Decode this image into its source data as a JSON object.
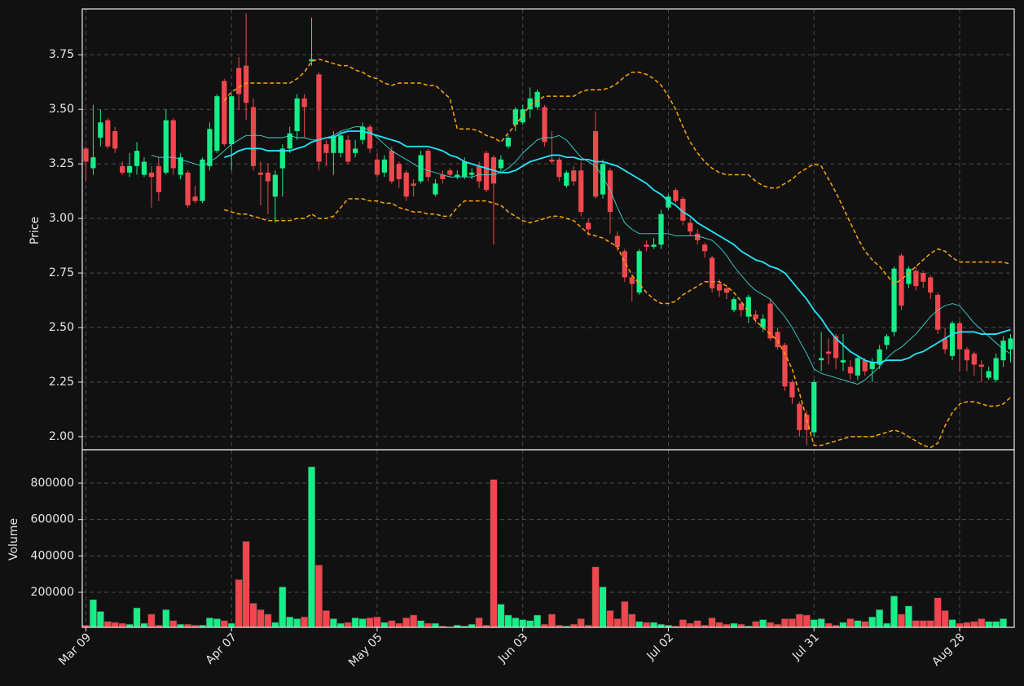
{
  "chart_data": {
    "type": "candlestick",
    "ylabel": "Price",
    "volume_ylabel": "Volume",
    "up_color": "#16ee88",
    "down_color": "#f0474e",
    "grid": true,
    "categories": [
      "Mar 09",
      null,
      null,
      null,
      null,
      null,
      null,
      null,
      null,
      null,
      null,
      null,
      null,
      null,
      null,
      null,
      null,
      null,
      null,
      null,
      "Apr 07",
      null,
      null,
      null,
      null,
      null,
      null,
      null,
      null,
      null,
      null,
      null,
      null,
      null,
      null,
      null,
      null,
      null,
      null,
      null,
      "May 05",
      null,
      null,
      null,
      null,
      null,
      null,
      null,
      null,
      null,
      null,
      null,
      null,
      null,
      null,
      null,
      null,
      null,
      null,
      null,
      "Jun 03",
      null,
      null,
      null,
      null,
      null,
      null,
      null,
      null,
      null,
      null,
      null,
      null,
      null,
      null,
      null,
      null,
      null,
      null,
      null,
      "Jul 02",
      null,
      null,
      null,
      null,
      null,
      null,
      null,
      null,
      null,
      null,
      null,
      null,
      null,
      null,
      null,
      null,
      null,
      null,
      null,
      "Jul 31",
      null,
      null,
      null,
      null,
      null,
      null,
      null,
      null,
      null,
      null,
      null,
      null,
      null,
      null,
      null,
      null,
      null,
      null,
      null,
      "Aug 28",
      null,
      null,
      null,
      null,
      null,
      null,
      null
    ],
    "open": [
      3.32,
      3.23,
      3.37,
      3.45,
      3.4,
      3.24,
      3.21,
      3.24,
      3.2,
      3.21,
      3.24,
      3.21,
      3.45,
      3.2,
      3.21,
      3.1,
      3.08,
      3.24,
      3.31,
      3.63,
      3.34,
      3.69,
      3.7,
      3.51,
      3.21,
      3.21,
      3.1,
      3.23,
      3.32,
      3.4,
      3.55,
      3.72,
      3.66,
      3.34,
      3.3,
      3.3,
      3.36,
      3.3,
      3.36,
      3.42,
      3.27,
      3.21,
      3.31,
      3.25,
      3.21,
      3.16,
      3.17,
      3.31,
      3.11,
      3.2,
      3.22,
      3.19,
      3.19,
      3.2,
      3.24,
      3.3,
      3.28,
      3.23,
      3.33,
      3.43,
      3.44,
      3.5,
      3.51,
      3.51,
      3.27,
      3.27,
      3.15,
      3.22,
      3.22,
      2.98,
      3.4,
      3.11,
      3.22,
      2.92,
      2.85,
      2.73,
      2.66,
      2.88,
      2.87,
      2.88,
      3.05,
      3.13,
      3.09,
      2.98,
      2.93,
      2.88,
      2.82,
      2.7,
      2.68,
      2.58,
      2.61,
      2.55,
      2.56,
      2.5,
      2.61,
      2.48,
      2.42,
      2.25,
      2.15,
      2.1,
      2.02,
      2.35,
      2.39,
      2.46,
      2.34,
      2.32,
      2.28,
      2.35,
      2.31,
      2.33,
      2.42,
      2.48,
      2.83,
      2.7,
      2.76,
      2.75,
      2.73,
      2.65,
      2.45,
      2.37,
      2.52,
      2.4,
      2.38,
      2.33,
      2.27,
      2.26,
      2.35,
      2.4
    ],
    "high": [
      3.33,
      3.52,
      3.5,
      3.46,
      3.42,
      3.26,
      3.3,
      3.35,
      3.28,
      3.24,
      3.28,
      3.5,
      3.46,
      3.3,
      3.22,
      3.15,
      3.28,
      3.44,
      3.57,
      3.64,
      3.57,
      3.74,
      3.94,
      3.55,
      3.26,
      3.25,
      3.22,
      3.34,
      3.42,
      3.57,
      3.57,
      3.92,
      3.67,
      3.36,
      3.4,
      3.4,
      3.38,
      3.36,
      3.44,
      3.43,
      3.3,
      3.29,
      3.33,
      3.26,
      3.22,
      3.18,
      3.31,
      3.32,
      3.18,
      3.22,
      3.23,
      3.22,
      3.28,
      3.23,
      3.26,
      3.31,
      3.29,
      3.29,
      3.38,
      3.51,
      3.52,
      3.6,
      3.59,
      3.52,
      3.4,
      3.28,
      3.22,
      3.24,
      3.26,
      3.0,
      3.49,
      3.27,
      3.23,
      2.94,
      2.86,
      2.74,
      2.86,
      2.9,
      2.91,
      3.04,
      3.11,
      3.14,
      3.1,
      3.0,
      2.95,
      2.89,
      2.83,
      2.72,
      2.69,
      2.64,
      2.62,
      2.65,
      2.58,
      2.56,
      2.63,
      2.5,
      2.43,
      2.26,
      2.16,
      2.12,
      2.26,
      2.48,
      2.45,
      2.47,
      2.47,
      2.35,
      2.37,
      2.36,
      2.36,
      2.42,
      2.47,
      2.78,
      2.84,
      2.78,
      2.78,
      2.76,
      2.74,
      2.66,
      2.5,
      2.53,
      2.53,
      2.41,
      2.39,
      2.35,
      2.32,
      2.38,
      2.46,
      2.47
    ],
    "low": [
      3.17,
      3.2,
      3.33,
      3.32,
      3.3,
      3.2,
      3.19,
      3.2,
      3.19,
      3.05,
      3.08,
      3.2,
      3.2,
      3.18,
      3.05,
      3.07,
      3.07,
      3.22,
      3.3,
      3.33,
      3.22,
      3.5,
      3.45,
      3.22,
      3.06,
      3.02,
      2.98,
      3.1,
      3.3,
      3.36,
      3.37,
      3.7,
      3.22,
      3.24,
      3.2,
      3.28,
      3.25,
      3.28,
      3.34,
      3.3,
      3.19,
      3.19,
      3.16,
      3.14,
      3.08,
      3.1,
      3.16,
      3.17,
      3.1,
      3.16,
      3.19,
      3.18,
      3.18,
      3.18,
      3.14,
      3.12,
      2.88,
      3.21,
      3.32,
      3.4,
      3.43,
      3.46,
      3.5,
      3.33,
      3.25,
      3.17,
      3.14,
      3.15,
      3.01,
      2.92,
      3.09,
      3.09,
      2.93,
      2.85,
      2.71,
      2.62,
      2.65,
      2.85,
      2.86,
      2.86,
      3.04,
      3.07,
      2.97,
      2.92,
      2.88,
      2.82,
      2.66,
      2.64,
      2.63,
      2.57,
      2.55,
      2.52,
      2.52,
      2.48,
      2.44,
      2.4,
      2.21,
      2.15,
      2.0,
      1.96,
      2.0,
      2.3,
      2.33,
      2.31,
      2.3,
      2.26,
      2.26,
      2.28,
      2.25,
      2.31,
      2.4,
      2.46,
      2.58,
      2.68,
      2.67,
      2.68,
      2.63,
      2.47,
      2.38,
      2.35,
      2.3,
      2.3,
      2.28,
      2.25,
      2.26,
      2.25,
      2.32,
      2.34
    ],
    "close": [
      3.26,
      3.28,
      3.44,
      3.33,
      3.32,
      3.21,
      3.24,
      3.31,
      3.26,
      3.19,
      3.12,
      3.45,
      3.23,
      3.28,
      3.06,
      3.08,
      3.27,
      3.41,
      3.56,
      3.34,
      3.56,
      3.57,
      3.53,
      3.24,
      3.2,
      3.17,
      3.2,
      3.32,
      3.39,
      3.55,
      3.51,
      3.73,
      3.26,
      3.3,
      3.38,
      3.38,
      3.26,
      3.32,
      3.42,
      3.32,
      3.2,
      3.27,
      3.17,
      3.18,
      3.1,
      3.15,
      3.29,
      3.19,
      3.16,
      3.18,
      3.2,
      3.2,
      3.26,
      3.21,
      3.17,
      3.13,
      3.16,
      3.27,
      3.37,
      3.5,
      3.5,
      3.55,
      3.58,
      3.35,
      3.26,
      3.19,
      3.21,
      3.17,
      3.03,
      2.95,
      3.1,
      3.25,
      3.03,
      2.87,
      2.73,
      2.7,
      2.85,
      2.87,
      2.88,
      3.02,
      3.1,
      3.08,
      2.99,
      2.94,
      2.9,
      2.85,
      2.68,
      2.67,
      2.66,
      2.63,
      2.58,
      2.64,
      2.54,
      2.54,
      2.45,
      2.41,
      2.23,
      2.18,
      2.03,
      2.03,
      2.25,
      2.36,
      2.38,
      2.36,
      2.35,
      2.29,
      2.36,
      2.3,
      2.34,
      2.4,
      2.46,
      2.77,
      2.6,
      2.77,
      2.69,
      2.71,
      2.66,
      2.49,
      2.4,
      2.52,
      2.4,
      2.35,
      2.33,
      2.32,
      2.3,
      2.36,
      2.44,
      2.45
    ],
    "volume": [
      20000,
      160000,
      95000,
      40000,
      35000,
      30000,
      25000,
      115000,
      30000,
      80000,
      20000,
      105000,
      45000,
      25000,
      25000,
      20000,
      20000,
      60000,
      55000,
      45000,
      30000,
      270000,
      480000,
      140000,
      105000,
      80000,
      35000,
      230000,
      65000,
      55000,
      65000,
      890000,
      350000,
      100000,
      55000,
      30000,
      35000,
      60000,
      55000,
      60000,
      65000,
      35000,
      45000,
      30000,
      60000,
      75000,
      45000,
      30000,
      30000,
      15000,
      10000,
      20000,
      15000,
      25000,
      60000,
      20000,
      820000,
      135000,
      75000,
      60000,
      50000,
      45000,
      75000,
      25000,
      80000,
      20000,
      15000,
      25000,
      55000,
      20000,
      340000,
      230000,
      100000,
      55000,
      150000,
      80000,
      40000,
      35000,
      35000,
      25000,
      20000,
      15000,
      50000,
      30000,
      45000,
      20000,
      60000,
      35000,
      25000,
      30000,
      25000,
      15000,
      40000,
      50000,
      35000,
      25000,
      55000,
      55000,
      80000,
      75000,
      50000,
      55000,
      30000,
      20000,
      35000,
      55000,
      45000,
      40000,
      65000,
      105000,
      30000,
      180000,
      80000,
      125000,
      45000,
      45000,
      45000,
      170000,
      100000,
      50000,
      30000,
      35000,
      40000,
      55000,
      40000,
      40000,
      55000,
      10000
    ],
    "lines": [
      {
        "color": "#ffa500",
        "dash": true,
        "width": 1.5,
        "values": [
          null,
          null,
          null,
          null,
          null,
          null,
          null,
          null,
          null,
          null,
          null,
          null,
          null,
          null,
          null,
          null,
          null,
          null,
          null,
          3.54,
          3.58,
          3.6,
          3.62,
          3.62,
          3.62,
          3.62,
          3.62,
          3.62,
          3.62,
          3.64,
          3.67,
          3.72,
          3.73,
          3.72,
          3.71,
          3.7,
          3.7,
          3.68,
          3.67,
          3.65,
          3.64,
          3.62,
          3.61,
          3.62,
          3.62,
          3.62,
          3.62,
          3.61,
          3.61,
          3.58,
          3.55,
          3.41,
          3.41,
          3.41,
          3.4,
          3.38,
          3.37,
          3.35,
          3.39,
          3.43,
          3.47,
          3.52,
          3.54,
          3.56,
          3.56,
          3.56,
          3.56,
          3.56,
          3.58,
          3.59,
          3.59,
          3.59,
          3.6,
          3.62,
          3.65,
          3.67,
          3.67,
          3.66,
          3.64,
          3.61,
          3.56,
          3.5,
          3.42,
          3.35,
          3.3,
          3.26,
          3.23,
          3.21,
          3.2,
          3.2,
          3.2,
          3.2,
          3.17,
          3.15,
          3.14,
          3.14,
          3.16,
          3.18,
          3.21,
          3.23,
          3.25,
          3.24,
          3.18,
          3.12,
          3.05,
          2.98,
          2.91,
          2.85,
          2.81,
          2.78,
          2.74,
          2.7,
          2.72,
          2.75,
          2.78,
          2.81,
          2.84,
          2.86,
          2.85,
          2.82,
          2.8,
          2.8,
          2.8,
          2.8,
          2.8,
          2.8,
          2.8,
          2.79
        ]
      },
      {
        "color": "#ffa500",
        "dash": true,
        "width": 1.5,
        "values": [
          null,
          null,
          null,
          null,
          null,
          null,
          null,
          null,
          null,
          null,
          null,
          null,
          null,
          null,
          null,
          null,
          null,
          null,
          null,
          3.04,
          3.03,
          3.02,
          3.02,
          3.01,
          3.0,
          2.99,
          2.99,
          2.99,
          2.99,
          3.0,
          3.0,
          3.02,
          3.0,
          3.0,
          3.01,
          3.05,
          3.09,
          3.09,
          3.09,
          3.08,
          3.08,
          3.07,
          3.07,
          3.05,
          3.04,
          3.03,
          3.03,
          3.02,
          3.02,
          3.01,
          3.01,
          3.05,
          3.08,
          3.08,
          3.08,
          3.08,
          3.07,
          3.06,
          3.03,
          3.01,
          2.99,
          2.98,
          2.99,
          3.0,
          3.01,
          3.01,
          3.0,
          2.99,
          2.96,
          2.93,
          2.92,
          2.91,
          2.89,
          2.87,
          2.8,
          2.74,
          2.7,
          2.66,
          2.63,
          2.61,
          2.61,
          2.62,
          2.65,
          2.67,
          2.69,
          2.71,
          2.71,
          2.71,
          2.69,
          2.66,
          2.62,
          2.57,
          2.53,
          2.5,
          2.47,
          2.44,
          2.38,
          2.31,
          2.2,
          2.08,
          1.96,
          1.96,
          1.97,
          1.98,
          1.99,
          2.0,
          2.0,
          2.0,
          2.0,
          2.01,
          2.02,
          2.03,
          2.02,
          2.0,
          1.98,
          1.96,
          1.95,
          1.97,
          2.05,
          2.11,
          2.15,
          2.16,
          2.16,
          2.15,
          2.14,
          2.14,
          2.15,
          2.18
        ]
      },
      {
        "color": "#22e6ff",
        "dash": false,
        "width": 1.8,
        "values": [
          null,
          null,
          null,
          null,
          null,
          null,
          null,
          null,
          null,
          null,
          null,
          null,
          null,
          null,
          null,
          null,
          null,
          null,
          null,
          3.28,
          3.29,
          3.31,
          3.32,
          3.32,
          3.32,
          3.31,
          3.31,
          3.31,
          3.31,
          3.32,
          3.33,
          3.35,
          3.36,
          3.37,
          3.37,
          3.39,
          3.4,
          3.4,
          3.4,
          3.39,
          3.38,
          3.37,
          3.36,
          3.35,
          3.33,
          3.33,
          3.33,
          3.33,
          3.32,
          3.31,
          3.29,
          3.28,
          3.26,
          3.25,
          3.24,
          3.23,
          3.22,
          3.21,
          3.21,
          3.22,
          3.24,
          3.26,
          3.27,
          3.28,
          3.29,
          3.29,
          3.28,
          3.28,
          3.27,
          3.27,
          3.26,
          3.26,
          3.25,
          3.24,
          3.22,
          3.2,
          3.18,
          3.16,
          3.13,
          3.11,
          3.08,
          3.06,
          3.03,
          3.01,
          2.98,
          2.96,
          2.94,
          2.92,
          2.9,
          2.88,
          2.85,
          2.83,
          2.81,
          2.8,
          2.78,
          2.77,
          2.75,
          2.71,
          2.67,
          2.63,
          2.58,
          2.54,
          2.49,
          2.45,
          2.42,
          2.39,
          2.37,
          2.35,
          2.34,
          2.34,
          2.35,
          2.35,
          2.35,
          2.36,
          2.38,
          2.39,
          2.41,
          2.43,
          2.45,
          2.47,
          2.48,
          2.48,
          2.48,
          2.47,
          2.47,
          2.47,
          2.48,
          2.49
        ]
      },
      {
        "color": "#3cd6cf",
        "dash": false,
        "width": 0.9,
        "values": [
          null,
          null,
          null,
          null,
          null,
          null,
          null,
          null,
          null,
          3.29,
          3.28,
          3.28,
          3.28,
          3.27,
          3.26,
          3.25,
          3.24,
          3.26,
          3.28,
          3.31,
          3.34,
          3.36,
          3.38,
          3.38,
          3.38,
          3.37,
          3.37,
          3.37,
          3.38,
          3.37,
          3.37,
          3.36,
          3.36,
          3.37,
          3.38,
          3.4,
          3.41,
          3.42,
          3.42,
          3.4,
          3.37,
          3.34,
          3.31,
          3.29,
          3.27,
          3.25,
          3.23,
          3.22,
          3.21,
          3.2,
          3.19,
          3.19,
          3.19,
          3.19,
          3.2,
          3.2,
          3.2,
          3.21,
          3.23,
          3.26,
          3.3,
          3.33,
          3.36,
          3.37,
          3.37,
          3.38,
          3.36,
          3.32,
          3.28,
          3.26,
          3.24,
          3.19,
          3.13,
          3.05,
          2.98,
          2.95,
          2.93,
          2.93,
          2.93,
          2.93,
          2.93,
          2.92,
          2.92,
          2.92,
          2.92,
          2.91,
          2.9,
          2.87,
          2.83,
          2.78,
          2.74,
          2.7,
          2.67,
          2.65,
          2.63,
          2.59,
          2.55,
          2.5,
          2.44,
          2.38,
          2.31,
          2.29,
          2.28,
          2.27,
          2.26,
          2.25,
          2.24,
          2.26,
          2.29,
          2.32,
          2.36,
          2.39,
          2.41,
          2.44,
          2.47,
          2.51,
          2.55,
          2.58,
          2.6,
          2.61,
          2.6,
          2.56,
          2.52,
          2.49,
          2.46,
          2.43,
          2.4,
          2.38
        ]
      }
    ],
    "xlim": [
      -0.5,
      127.5
    ],
    "ylim": [
      1.94,
      3.96
    ],
    "yticks": [
      {
        "value": 2,
        "label": "2.00"
      },
      2.25,
      {
        "value": 2.5,
        "label": "2.50"
      },
      2.75,
      {
        "value": 3,
        "label": "3.00"
      },
      3.25,
      {
        "value": 3.5,
        "label": "3.50"
      },
      3.75
    ],
    "volume_ylim": [
      7500,
      983600
    ],
    "volume_yticks": [
      200000,
      400000,
      600000,
      800000
    ]
  }
}
